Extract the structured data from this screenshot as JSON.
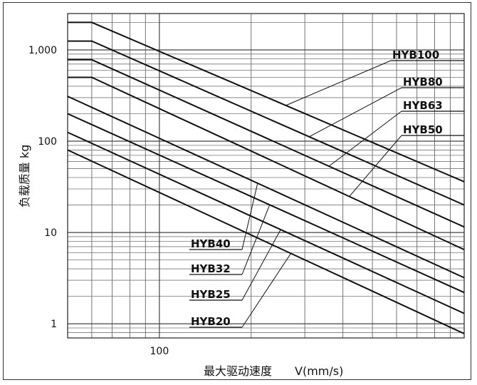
{
  "chart_data": {
    "type": "line",
    "xlabel": "最大驱动速度",
    "xunit": "V(mm/s)",
    "ylabel": "负载质量 kg",
    "xscale": "log",
    "yscale": "log",
    "xlim": [
      50,
      1000
    ],
    "ylim": [
      0.7,
      2500
    ],
    "x_ticks": [
      100
    ],
    "x_tick_labels": [
      "100"
    ],
    "y_ticks": [
      1,
      10,
      100,
      1000
    ],
    "y_tick_labels": [
      "1",
      "10",
      "100",
      "1,000"
    ],
    "grid": true,
    "series": [
      {
        "name": "HYB100",
        "x": [
          50,
          60,
          1000
        ],
        "y": [
          2000,
          2000,
          36
        ]
      },
      {
        "name": "HYB80",
        "x": [
          50,
          60,
          1000
        ],
        "y": [
          1250,
          1250,
          20
        ]
      },
      {
        "name": "HYB63",
        "x": [
          50,
          60,
          1000
        ],
        "y": [
          780,
          780,
          11.5
        ]
      },
      {
        "name": "HYB50",
        "x": [
          50,
          60,
          1000
        ],
        "y": [
          500,
          500,
          6.5
        ]
      },
      {
        "name": "HYB40",
        "x": [
          50,
          1000
        ],
        "y": [
          310,
          3.2
        ]
      },
      {
        "name": "HYB32",
        "x": [
          50,
          1000
        ],
        "y": [
          200,
          2.2
        ]
      },
      {
        "name": "HYB25",
        "x": [
          50,
          1000
        ],
        "y": [
          125,
          1.3
        ]
      },
      {
        "name": "HYB20",
        "x": [
          50,
          1000
        ],
        "y": [
          80,
          0.78
        ]
      }
    ]
  }
}
